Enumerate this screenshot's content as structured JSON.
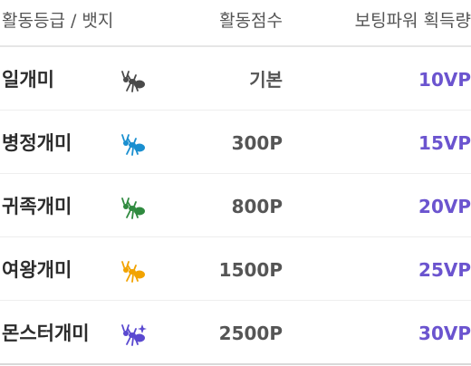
{
  "header": {
    "grade": "활동등급 / 뱃지",
    "score": "활동점수",
    "vp": "보팅파워 획득량"
  },
  "colors": {
    "vp": "#6b54cf"
  },
  "rows": [
    {
      "grade": "일개미",
      "badge": "ant-icon-gray",
      "badge_color": "#4a4a4a",
      "score": "기본",
      "vp": "10VP"
    },
    {
      "grade": "병정개미",
      "badge": "ant-icon-blue",
      "badge_color": "#1a8fd0",
      "score": "300P",
      "vp": "15VP"
    },
    {
      "grade": "귀족개미",
      "badge": "ant-icon-green",
      "badge_color": "#2f8a3f",
      "score": "800P",
      "vp": "20VP"
    },
    {
      "grade": "여왕개미",
      "badge": "ant-icon-orange",
      "badge_color": "#f2a300",
      "score": "1500P",
      "vp": "25VP"
    },
    {
      "grade": "몬스터개미",
      "badge": "ant-icon-purple",
      "badge_color": "#5a49d0",
      "score": "2500P",
      "vp": "30VP"
    }
  ]
}
